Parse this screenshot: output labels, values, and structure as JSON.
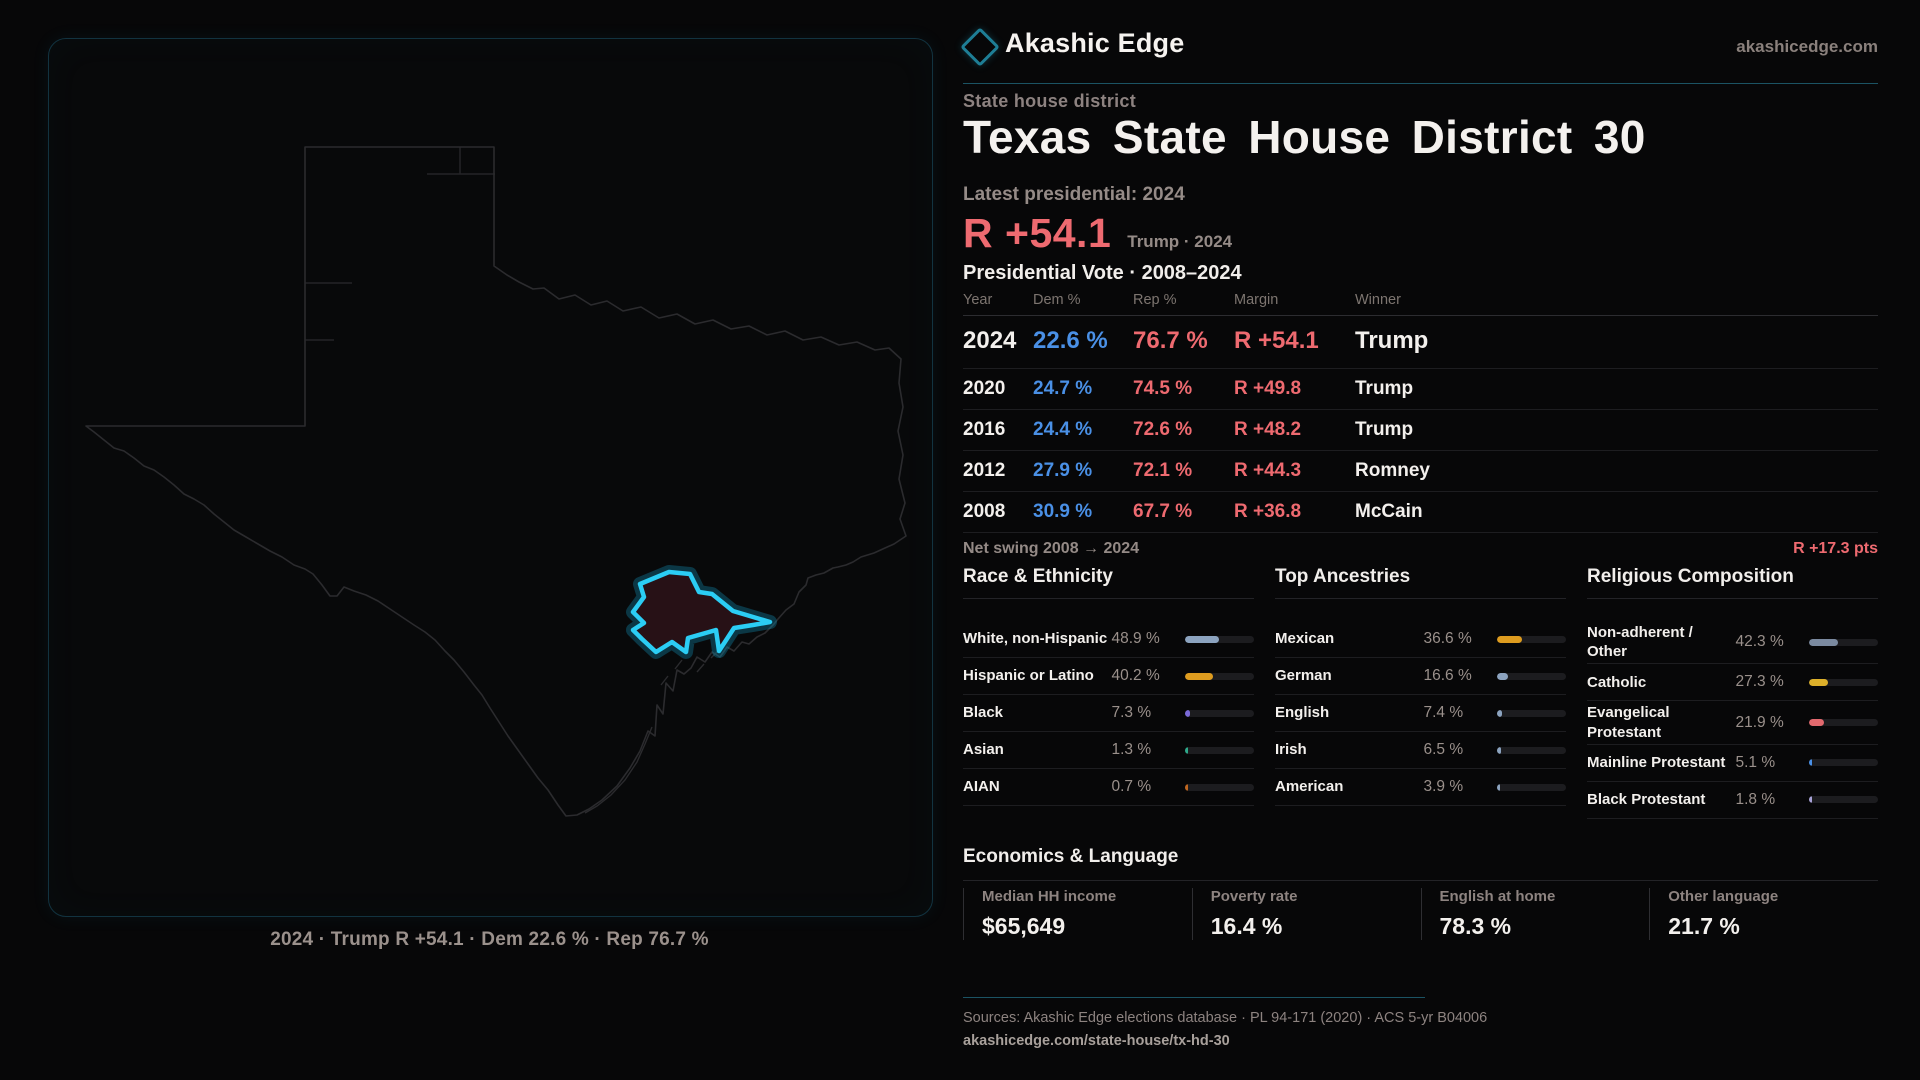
{
  "brand": {
    "name": "Akashic Edge",
    "domain": "akashicedge.com"
  },
  "header": {
    "kicker": "State house district",
    "title": "Texas State House District 30"
  },
  "latest": {
    "label": "Latest presidential: 2024",
    "margin": "R +54.1",
    "context": "Trump · 2024"
  },
  "table": {
    "title": "Presidential Vote · 2008–2024",
    "columns": [
      "Year",
      "Dem %",
      "Rep %",
      "Margin",
      "Winner"
    ],
    "rows": [
      {
        "year": "2024",
        "dem": "22.6 %",
        "rep": "76.7 %",
        "margin": "R +54.1",
        "winner": "Trump",
        "featured": true
      },
      {
        "year": "2020",
        "dem": "24.7 %",
        "rep": "74.5 %",
        "margin": "R +49.8",
        "winner": "Trump",
        "featured": false
      },
      {
        "year": "2016",
        "dem": "24.4 %",
        "rep": "72.6 %",
        "margin": "R +48.2",
        "winner": "Trump",
        "featured": false
      },
      {
        "year": "2012",
        "dem": "27.9 %",
        "rep": "72.1 %",
        "margin": "R +44.3",
        "winner": "Romney",
        "featured": false
      },
      {
        "year": "2008",
        "dem": "30.9 %",
        "rep": "67.7 %",
        "margin": "R +36.8",
        "winner": "McCain",
        "featured": false
      }
    ],
    "net_swing_label": "Net swing 2008 → 2024",
    "net_swing_value": "R +17.3 pts"
  },
  "demographics": {
    "groups": [
      {
        "heading": "Race & Ethnicity",
        "rows": [
          {
            "label": "White, non-Hispanic",
            "value": "48.9 %",
            "pct": 48.9,
            "color": "#8ca3bf"
          },
          {
            "label": "Hispanic or Latino",
            "value": "40.2 %",
            "pct": 40.2,
            "color": "#de9c1f"
          },
          {
            "label": "Black",
            "value": "7.3 %",
            "pct": 7.3,
            "color": "#7a6ad8"
          },
          {
            "label": "Asian",
            "value": "1.3 %",
            "pct": 1.3,
            "color": "#2ea98a"
          },
          {
            "label": "AIAN",
            "value": "0.7 %",
            "pct": 0.7,
            "color": "#c0661f"
          }
        ]
      },
      {
        "heading": "Top Ancestries",
        "rows": [
          {
            "label": "Mexican",
            "value": "36.6 %",
            "pct": 36.6,
            "color": "#de9c1f"
          },
          {
            "label": "German",
            "value": "16.6 %",
            "pct": 16.6,
            "color": "#8ca3bf"
          },
          {
            "label": "English",
            "value": "7.4 %",
            "pct": 7.4,
            "color": "#8ca3bf"
          },
          {
            "label": "Irish",
            "value": "6.5 %",
            "pct": 6.5,
            "color": "#8ca3bf"
          },
          {
            "label": "American",
            "value": "3.9 %",
            "pct": 3.9,
            "color": "#8ca3bf"
          }
        ]
      },
      {
        "heading": "Religious Composition",
        "rows": [
          {
            "label": "Non-adherent / Other",
            "value": "42.3 %",
            "pct": 42.3,
            "color": "#7b8aa0"
          },
          {
            "label": "Catholic",
            "value": "27.3 %",
            "pct": 27.3,
            "color": "#ddb02a"
          },
          {
            "label": "Evangelical Protestant",
            "value": "21.9 %",
            "pct": 21.9,
            "color": "#e2696e"
          },
          {
            "label": "Mainline Protestant",
            "value": "5.1 %",
            "pct": 5.1,
            "color": "#4a90e6"
          },
          {
            "label": "Black Protestant",
            "value": "1.8 %",
            "pct": 1.8,
            "color": "#a9a3d8"
          }
        ]
      }
    ]
  },
  "economics": {
    "heading": "Economics & Language",
    "stats": [
      {
        "label": "Median HH income",
        "value": "$65,649"
      },
      {
        "label": "Poverty rate",
        "value": "16.4 %"
      },
      {
        "label": "English at home",
        "value": "78.3 %"
      },
      {
        "label": "Other language",
        "value": "21.7 %"
      }
    ]
  },
  "map": {
    "caption": "2024 · Trump R +54.1 · Dem 22.6 % · Rep 76.7 %"
  },
  "footer": {
    "sources": "Sources: Akashic Edge elections database · PL 94-171 (2020) · ACS 5-yr B04006",
    "permalink": "akashicedge.com/state-house/tx-hd-30"
  },
  "colors": {
    "dem": "#4a90e6",
    "rep": "#ee6a70",
    "accent_cyan": "#2bcdf4",
    "accent_teal_line": "#1b5363"
  }
}
